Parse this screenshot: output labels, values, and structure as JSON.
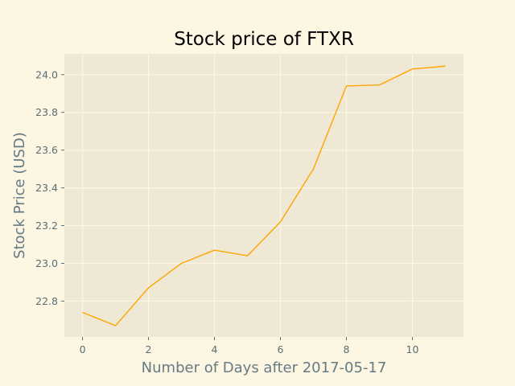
{
  "chart_data": {
    "type": "line",
    "title": "Stock price of FTXR",
    "xlabel": "Number of Days after 2017-05-17",
    "ylabel": "Stock Price (USD)",
    "xlim": [
      -0.55,
      11.55
    ],
    "ylim": [
      22.61,
      24.11
    ],
    "xticks": [
      0,
      2,
      4,
      6,
      8,
      10
    ],
    "xtick_labels": [
      "0",
      "2",
      "4",
      "6",
      "8",
      "10"
    ],
    "yticks": [
      22.8,
      23.0,
      23.2,
      23.4,
      23.6,
      23.8,
      24.0
    ],
    "ytick_labels": [
      "22.8",
      "23.0",
      "23.2",
      "23.4",
      "23.6",
      "23.8",
      "24.0"
    ],
    "grid": true,
    "legend": false,
    "series": [
      {
        "color": "#ffa500",
        "x": [
          0,
          1,
          2,
          3,
          4,
          5,
          6,
          7,
          8,
          9,
          10,
          11
        ],
        "y": [
          22.74,
          22.67,
          22.87,
          23.0,
          23.07,
          23.04,
          23.22,
          23.5,
          23.94,
          23.945,
          24.03,
          24.045
        ]
      }
    ],
    "colors": {
      "figure_bg": "#fdf6e3",
      "axes_bg": "#eee8d5",
      "grid": "#fdf6e3",
      "tick_text": "#586e75",
      "label_text": "#657b83",
      "title_text": "#000000",
      "line": "#ffa500"
    }
  }
}
